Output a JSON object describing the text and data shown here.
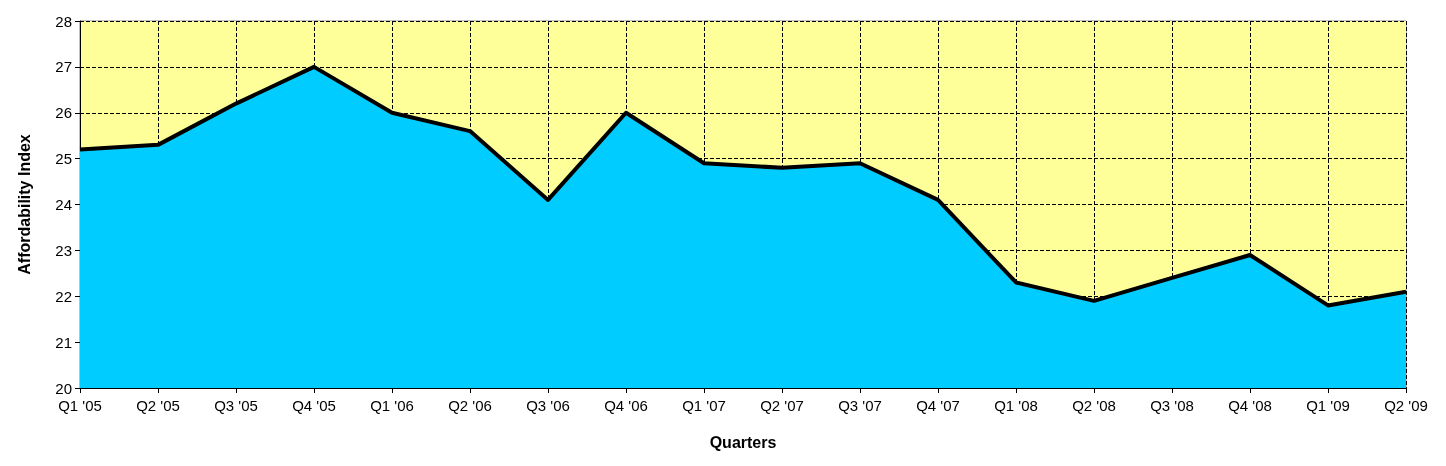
{
  "chart_data": {
    "type": "area",
    "xlabel": "Quarters",
    "ylabel": "Affordability Index",
    "categories": [
      "Q1 '05",
      "Q2 '05",
      "Q3 '05",
      "Q4 '05",
      "Q1 '06",
      "Q2 '06",
      "Q3 '06",
      "Q4 '06",
      "Q1 '07",
      "Q2 '07",
      "Q3 '07",
      "Q4 '07",
      "Q1 '08",
      "Q2 '08",
      "Q3 '08",
      "Q4 '08",
      "Q1 '09",
      "Q2 '09"
    ],
    "series": [
      {
        "color": "#00ccff",
        "values": [
          25.2,
          25.3,
          26.2,
          27.0,
          26.0,
          25.6,
          24.1,
          26.0,
          24.9,
          24.8,
          24.9,
          24.1,
          22.3,
          21.9,
          22.4,
          22.9,
          21.8,
          22.1
        ]
      }
    ],
    "ylim": [
      20,
      28
    ],
    "yticks": [
      20,
      21,
      22,
      23,
      24,
      25,
      26,
      27,
      28
    ],
    "bands": [
      {
        "axis": "y",
        "from": 20,
        "to": 28,
        "color": "#ffff99"
      }
    ],
    "grid": true,
    "marker": "none",
    "line_style": "solid"
  }
}
